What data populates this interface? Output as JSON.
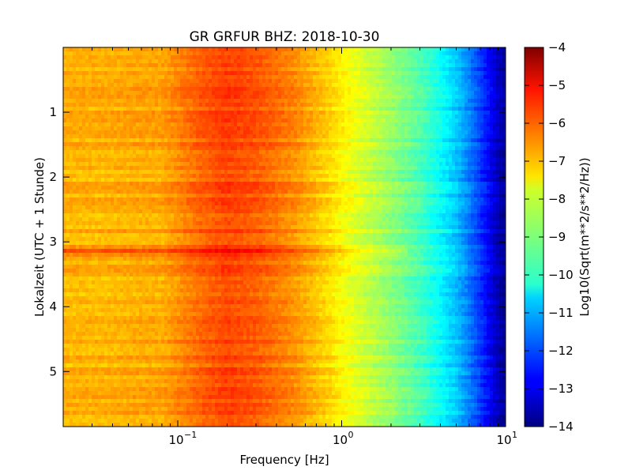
{
  "chart_data": {
    "type": "heatmap",
    "title": "GR GRFUR BHZ: 2018-10-30",
    "xlabel": "Frequency [Hz]",
    "ylabel": "Lokalzeit (UTC + 1 Stunde)",
    "colorbar_label": "Log10(Sqrt(m**2/s**2/Hz))",
    "x_scale": "log",
    "xlim": [
      0.02,
      10
    ],
    "ylim": [
      5.85,
      0
    ],
    "clim": [
      -14,
      -4
    ],
    "colormap": "jet",
    "x_ticks": [
      {
        "value": 0.1,
        "label": "10",
        "exp": "−1"
      },
      {
        "value": 1,
        "label": "10",
        "exp": "0"
      },
      {
        "value": 10,
        "label": "10",
        "exp": "1"
      }
    ],
    "y_ticks": [
      1,
      2,
      3,
      4,
      5
    ],
    "colorbar_ticks": [
      -4,
      -5,
      -6,
      -7,
      -8,
      -9,
      -10,
      -11,
      -12,
      -13,
      -14
    ],
    "spectrum_profile": {
      "frequency_hz": [
        0.02,
        0.04,
        0.06,
        0.08,
        0.14,
        0.2,
        0.3,
        0.5,
        0.8,
        1.2,
        2,
        3,
        4,
        5,
        6,
        7,
        8,
        9,
        10
      ],
      "log10_amplitude": [
        -7.0,
        -7.0,
        -6.9,
        -6.9,
        -6.2,
        -5.9,
        -6.1,
        -6.6,
        -7.3,
        -8.0,
        -8.8,
        -9.5,
        -10.2,
        -10.8,
        -11.5,
        -12.2,
        -12.8,
        -13.4,
        -13.8
      ]
    },
    "features": [
      {
        "time_hours": 3.15,
        "description": "strong broadband band",
        "peak_log10_amplitude": -5.0
      }
    ]
  }
}
